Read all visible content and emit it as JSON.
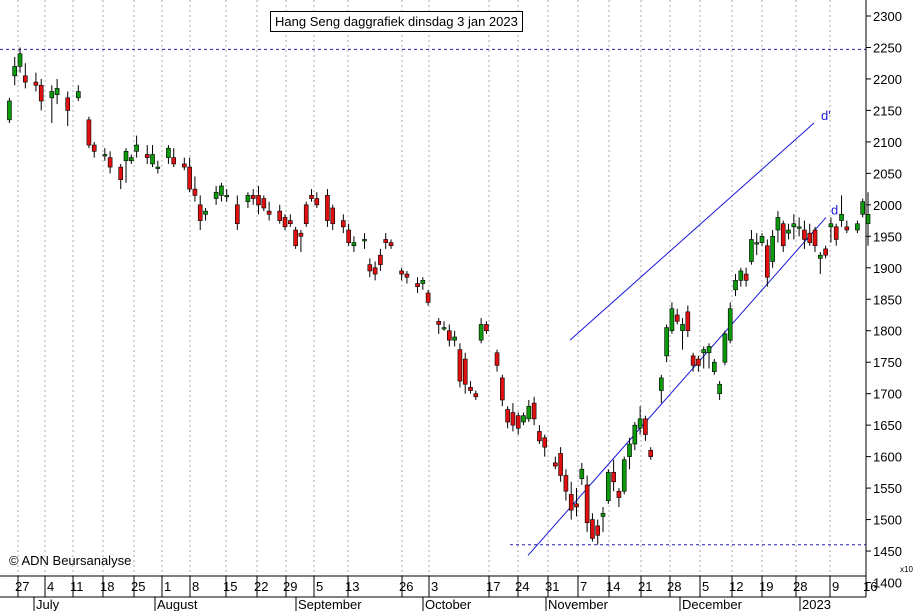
{
  "chart_data": {
    "type": "candlestick",
    "title": "Hang Seng daggrafiek dinsdag 3 jan 2023",
    "copyright": "© ADN Beursanalyse",
    "y_axis": {
      "side": "right",
      "ylim": [
        1400,
        2300
      ],
      "ticks": [
        2300,
        2250,
        2200,
        2150,
        2100,
        2050,
        2000,
        1950,
        1900,
        1850,
        1800,
        1750,
        1700,
        1650,
        1600,
        1550,
        1500,
        1450,
        1400
      ],
      "scale_note": "x10"
    },
    "x_axis": {
      "day_labels": [
        "27",
        "4",
        "11",
        "18",
        "25",
        "1",
        "8",
        "15",
        "22",
        "29",
        "5",
        "13",
        "26",
        "3",
        "17",
        "24",
        "31",
        "7",
        "14",
        "21",
        "28",
        "5",
        "12",
        "19",
        "28",
        "9",
        "16"
      ],
      "month_labels": [
        "July",
        "August",
        "September",
        "October",
        "November",
        "December",
        "2023"
      ]
    },
    "grid": "vertical-dotted",
    "horizontal_levels": [
      2247,
      1460
    ],
    "trend_lines": [
      {
        "name": "d'",
        "from": [
          "2022-11-01",
          1785
        ],
        "to": [
          "2023-01-03",
          2130
        ]
      },
      {
        "name": "d",
        "from": [
          "2022-10-24",
          1443
        ],
        "to": [
          "2023-01-03",
          1980
        ]
      }
    ],
    "candles": [
      [
        1.4,
        2135,
        2170,
        2130,
        2165
      ],
      [
        2.4,
        2205,
        2235,
        2190,
        2220
      ],
      [
        3.4,
        2220,
        2250,
        2210,
        2240
      ],
      [
        4.4,
        2205,
        2225,
        2185,
        2195
      ],
      [
        6.4,
        2195,
        2210,
        2180,
        2190
      ],
      [
        7.4,
        2190,
        2200,
        2150,
        2165
      ],
      [
        9.4,
        2170,
        2190,
        2130,
        2180
      ],
      [
        10.4,
        2175,
        2200,
        2160,
        2185
      ],
      [
        12.4,
        2170,
        2180,
        2125,
        2150
      ],
      [
        14.4,
        2170,
        2190,
        2165,
        2180
      ],
      [
        16.4,
        2135,
        2140,
        2090,
        2095
      ],
      [
        17.4,
        2095,
        2100,
        2075,
        2085
      ],
      [
        19.4,
        2080,
        2090,
        2070,
        2080
      ],
      [
        20.4,
        2075,
        2085,
        2050,
        2060
      ],
      [
        22.4,
        2060,
        2065,
        2025,
        2040
      ],
      [
        23.4,
        2070,
        2090,
        2035,
        2085
      ],
      [
        24.4,
        2070,
        2080,
        2065,
        2075
      ],
      [
        25.4,
        2085,
        2110,
        2075,
        2095
      ],
      [
        27.4,
        2080,
        2095,
        2065,
        2075
      ],
      [
        28.4,
        2065,
        2095,
        2060,
        2080
      ],
      [
        29.4,
        2060,
        2070,
        2050,
        2060
      ],
      [
        31.4,
        2075,
        2095,
        2065,
        2090
      ],
      [
        32.4,
        2075,
        2090,
        2060,
        2065
      ],
      [
        34.4,
        2065,
        2075,
        2055,
        2060
      ],
      [
        35.4,
        2060,
        2075,
        2020,
        2025
      ],
      [
        36.4,
        2025,
        2045,
        2005,
        2015
      ],
      [
        37.4,
        2000,
        2015,
        1960,
        1975
      ],
      [
        38.4,
        1985,
        1995,
        1975,
        1990
      ],
      [
        40.4,
        2010,
        2030,
        2000,
        2020
      ],
      [
        41.4,
        2015,
        2035,
        2005,
        2030
      ],
      [
        42.4,
        2015,
        2025,
        2005,
        2015
      ],
      [
        44.4,
        2000,
        2015,
        1960,
        1970
      ],
      [
        46.4,
        2005,
        2020,
        1995,
        2015
      ],
      [
        47.4,
        2015,
        2025,
        2000,
        2010
      ],
      [
        48.4,
        2015,
        2030,
        1985,
        2000
      ],
      [
        49.4,
        2010,
        2015,
        1990,
        1995
      ],
      [
        50.4,
        1990,
        2005,
        1975,
        1985
      ],
      [
        52.4,
        1990,
        2000,
        1970,
        1975
      ],
      [
        53.4,
        1980,
        1985,
        1960,
        1965
      ],
      [
        54.4,
        1975,
        1985,
        1965,
        1970
      ],
      [
        55.4,
        1960,
        1965,
        1930,
        1935
      ],
      [
        56.4,
        1955,
        1960,
        1925,
        1950
      ],
      [
        57.4,
        2000,
        2005,
        1965,
        1970
      ],
      [
        58.4,
        2015,
        2025,
        2005,
        2010
      ],
      [
        59.4,
        2010,
        2020,
        1995,
        2000
      ],
      [
        61.4,
        2015,
        2025,
        1965,
        1975
      ],
      [
        62.4,
        1995,
        2000,
        1960,
        1970
      ],
      [
        64.4,
        1975,
        1985,
        1955,
        1965
      ],
      [
        65.4,
        1960,
        1970,
        1935,
        1940
      ],
      [
        66.4,
        1935,
        1950,
        1925,
        1940
      ],
      [
        68.4,
        1945,
        1955,
        1930,
        1945
      ],
      [
        69.4,
        1905,
        1915,
        1885,
        1895
      ],
      [
        70.4,
        1900,
        1910,
        1880,
        1890
      ],
      [
        71.4,
        1920,
        1930,
        1895,
        1905
      ],
      [
        72.4,
        1945,
        1955,
        1930,
        1940
      ],
      [
        73.4,
        1940,
        1945,
        1930,
        1935
      ],
      [
        75.4,
        1895,
        1900,
        1880,
        1890
      ],
      [
        76.4,
        1890,
        1895,
        1875,
        1885
      ],
      [
        78.4,
        1875,
        1885,
        1860,
        1870
      ],
      [
        79.4,
        1875,
        1885,
        1865,
        1880
      ],
      [
        80.4,
        1860,
        1865,
        1840,
        1845
      ],
      [
        82.4,
        1815,
        1820,
        1795,
        1810
      ],
      [
        83.4,
        1805,
        1815,
        1800,
        1805
      ],
      [
        84.4,
        1800,
        1810,
        1775,
        1785
      ],
      [
        85.4,
        1785,
        1800,
        1775,
        1790
      ],
      [
        86.4,
        1770,
        1780,
        1710,
        1720
      ],
      [
        87.4,
        1755,
        1765,
        1700,
        1715
      ],
      [
        88.4,
        1710,
        1720,
        1700,
        1705
      ],
      [
        89.4,
        1700,
        1705,
        1690,
        1695
      ],
      [
        90.4,
        1785,
        1820,
        1780,
        1810
      ],
      [
        91.4,
        1810,
        1815,
        1795,
        1800
      ],
      [
        93.4,
        1765,
        1770,
        1735,
        1745
      ],
      [
        94.4,
        1725,
        1730,
        1680,
        1690
      ],
      [
        95.4,
        1675,
        1680,
        1645,
        1655
      ],
      [
        96.4,
        1670,
        1685,
        1640,
        1650
      ],
      [
        97.4,
        1665,
        1670,
        1635,
        1645
      ],
      [
        98.4,
        1655,
        1670,
        1650,
        1665
      ],
      [
        99.4,
        1660,
        1690,
        1655,
        1680
      ],
      [
        100.4,
        1685,
        1695,
        1650,
        1660
      ],
      [
        101.4,
        1640,
        1650,
        1620,
        1625
      ],
      [
        102.4,
        1630,
        1635,
        1600,
        1615
      ],
      [
        104.4,
        1590,
        1600,
        1580,
        1585
      ],
      [
        105.4,
        1605,
        1615,
        1560,
        1570
      ],
      [
        106.4,
        1570,
        1580,
        1530,
        1545
      ],
      [
        107.4,
        1540,
        1560,
        1500,
        1515
      ],
      [
        108.4,
        1525,
        1550,
        1505,
        1520
      ],
      [
        109.4,
        1565,
        1590,
        1555,
        1580
      ],
      [
        110.4,
        1555,
        1570,
        1480,
        1495
      ],
      [
        111.4,
        1500,
        1510,
        1465,
        1470
      ],
      [
        112.4,
        1490,
        1500,
        1460,
        1475
      ],
      [
        113.4,
        1505,
        1520,
        1480,
        1510
      ],
      [
        114.4,
        1530,
        1580,
        1525,
        1575
      ],
      [
        115.4,
        1575,
        1595,
        1545,
        1560
      ],
      [
        116.4,
        1545,
        1550,
        1520,
        1535
      ],
      [
        117.4,
        1545,
        1600,
        1540,
        1595
      ],
      [
        118.4,
        1600,
        1630,
        1580,
        1620
      ],
      [
        119.4,
        1620,
        1655,
        1610,
        1650
      ],
      [
        120.4,
        1645,
        1680,
        1635,
        1660
      ],
      [
        121.4,
        1660,
        1665,
        1625,
        1635
      ],
      [
        122.4,
        1610,
        1615,
        1595,
        1600
      ],
      [
        124.4,
        1705,
        1730,
        1685,
        1725
      ],
      [
        125.4,
        1760,
        1810,
        1750,
        1805
      ],
      [
        126.4,
        1800,
        1845,
        1795,
        1835
      ],
      [
        127.4,
        1825,
        1835,
        1810,
        1815
      ],
      [
        128.4,
        1800,
        1820,
        1770,
        1810
      ],
      [
        129.4,
        1830,
        1840,
        1790,
        1800
      ],
      [
        130.4,
        1760,
        1765,
        1735,
        1745
      ],
      [
        131.4,
        1755,
        1760,
        1735,
        1745
      ],
      [
        132.4,
        1765,
        1775,
        1740,
        1770
      ],
      [
        133.4,
        1765,
        1780,
        1740,
        1775
      ],
      [
        134.4,
        1735,
        1755,
        1730,
        1750
      ],
      [
        135.4,
        1700,
        1720,
        1690,
        1715
      ],
      [
        136.4,
        1750,
        1800,
        1745,
        1795
      ],
      [
        137.4,
        1785,
        1845,
        1780,
        1835
      ],
      [
        138.4,
        1865,
        1890,
        1855,
        1880
      ],
      [
        139.4,
        1880,
        1900,
        1870,
        1895
      ],
      [
        140.4,
        1890,
        1900,
        1870,
        1880
      ],
      [
        141.4,
        1910,
        1960,
        1905,
        1945
      ],
      [
        142.4,
        1940,
        1955,
        1920,
        1940
      ],
      [
        143.4,
        1940,
        1955,
        1935,
        1950
      ],
      [
        144.4,
        1935,
        1945,
        1870,
        1885
      ],
      [
        145.4,
        1910,
        1960,
        1900,
        1950
      ],
      [
        146.4,
        1960,
        1990,
        1940,
        1980
      ],
      [
        147.4,
        1970,
        1975,
        1925,
        1935
      ],
      [
        148.4,
        1955,
        1970,
        1945,
        1960
      ],
      [
        149.4,
        1965,
        1985,
        1945,
        1970
      ],
      [
        150.4,
        1965,
        1980,
        1950,
        1965
      ],
      [
        151.4,
        1960,
        1975,
        1930,
        1945
      ],
      [
        152.4,
        1955,
        1970,
        1935,
        1940
      ],
      [
        153.4,
        1960,
        1965,
        1925,
        1935
      ],
      [
        154.4,
        1915,
        1925,
        1890,
        1920
      ],
      [
        155.4,
        1930,
        1935,
        1915,
        1920
      ],
      [
        156.4,
        1965,
        1980,
        1940,
        1970
      ],
      [
        157.4,
        1965,
        1970,
        1935,
        1945
      ],
      [
        158.4,
        1975,
        2015,
        1965,
        1985
      ],
      [
        159.4,
        1965,
        1975,
        1955,
        1960
      ],
      [
        161.4,
        1960,
        1975,
        1955,
        1970
      ],
      [
        162.4,
        1985,
        2010,
        1980,
        2005
      ],
      [
        163.4,
        1970,
        2020,
        1935,
        1985
      ]
    ]
  }
}
